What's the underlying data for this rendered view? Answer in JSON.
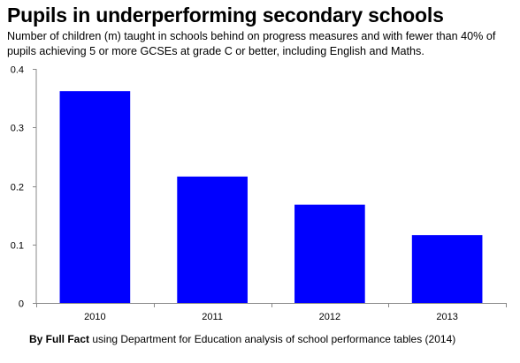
{
  "title": "Pupils in underperforming secondary schools",
  "subtitle": "Number of children (m) taught in schools behind on progress measures and with fewer than 40% of pupils achieving 5 or more GCSEs at grade C or better, including English and Maths.",
  "footer": {
    "byline": "By Full Fact",
    "source": " using Department for Education analysis of school performance tables (2014)"
  },
  "chart_data": {
    "type": "bar",
    "categories": [
      "2010",
      "2011",
      "2012",
      "2013"
    ],
    "values": [
      0.362,
      0.216,
      0.168,
      0.116
    ],
    "ylim": [
      0,
      0.4
    ],
    "yticks": [
      0,
      0.1,
      0.2,
      0.3,
      0.4
    ],
    "ytick_labels": [
      "0",
      "0.1",
      "0.2",
      "0.3",
      "0.4"
    ],
    "bar_color": "#0000ff",
    "grid": false,
    "legend": "none"
  }
}
